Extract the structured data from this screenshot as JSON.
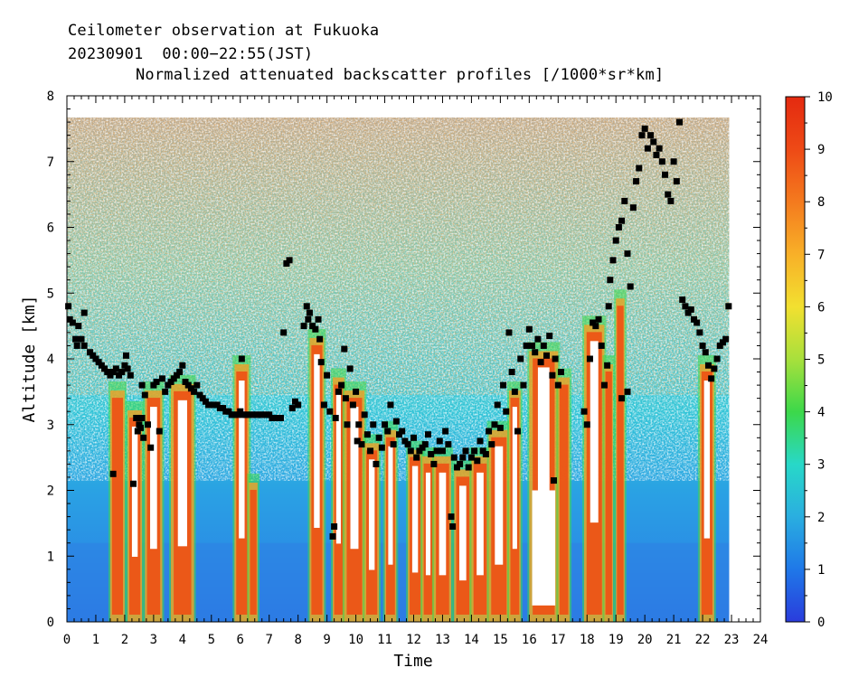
{
  "chart_data": {
    "type": "heatmap",
    "title_lines": [
      "Ceilometer observation at Fukuoka",
      "20230901  00:00−22:55(JST)",
      "Normalized attenuated backscatter profiles [/1000*sr*km]"
    ],
    "xlabel": "Time",
    "ylabel": "Altitude [km]",
    "xlim": [
      0,
      24
    ],
    "ylim": [
      0,
      8
    ],
    "x_ticks": [
      "0",
      "1",
      "2",
      "3",
      "4",
      "5",
      "6",
      "7",
      "8",
      "9",
      "10",
      "11",
      "12",
      "13",
      "14",
      "15",
      "16",
      "17",
      "18",
      "19",
      "20",
      "21",
      "22",
      "23",
      "24"
    ],
    "y_ticks": [
      "0",
      "1",
      "2",
      "3",
      "4",
      "5",
      "6",
      "7",
      "8"
    ],
    "colorbar": {
      "min": 0,
      "max": 10,
      "ticks": [
        "0",
        "1",
        "2",
        "3",
        "4",
        "5",
        "6",
        "7",
        "8",
        "9",
        "10"
      ],
      "colors": [
        "#2a3cdc",
        "#1f78e8",
        "#2aaee0",
        "#28d8c8",
        "#3cd84a",
        "#a8e03c",
        "#f2e030",
        "#f8b028",
        "#f47a1e",
        "#ee4a16",
        "#e42a10"
      ]
    },
    "data_extent": {
      "time_end_hours": 22.92,
      "top_altitude_km": 7.67
    },
    "cloud_base_points": [
      [
        0.05,
        4.8
      ],
      [
        0.1,
        4.6
      ],
      [
        0.2,
        4.55
      ],
      [
        0.3,
        4.3
      ],
      [
        0.35,
        4.2
      ],
      [
        0.4,
        4.5
      ],
      [
        0.5,
        4.3
      ],
      [
        0.6,
        4.7
      ],
      [
        0.6,
        4.2
      ],
      [
        0.8,
        4.1
      ],
      [
        0.9,
        4.05
      ],
      [
        1.0,
        4.0
      ],
      [
        1.1,
        3.95
      ],
      [
        1.2,
        3.9
      ],
      [
        1.3,
        3.85
      ],
      [
        1.4,
        3.8
      ],
      [
        1.5,
        3.75
      ],
      [
        1.6,
        3.8
      ],
      [
        1.7,
        3.85
      ],
      [
        1.8,
        3.75
      ],
      [
        1.9,
        3.8
      ],
      [
        2.0,
        3.9
      ],
      [
        2.05,
        4.05
      ],
      [
        2.1,
        3.85
      ],
      [
        2.2,
        3.75
      ],
      [
        1.6,
        2.25
      ],
      [
        2.3,
        2.1
      ],
      [
        2.4,
        3.1
      ],
      [
        2.45,
        2.9
      ],
      [
        2.5,
        3.0
      ],
      [
        2.55,
        2.95
      ],
      [
        2.6,
        3.6
      ],
      [
        2.6,
        3.1
      ],
      [
        2.65,
        2.8
      ],
      [
        2.7,
        3.45
      ],
      [
        2.8,
        3.0
      ],
      [
        2.9,
        2.65
      ],
      [
        3.0,
        3.6
      ],
      [
        3.1,
        3.65
      ],
      [
        3.2,
        2.9
      ],
      [
        3.3,
        3.7
      ],
      [
        3.4,
        3.5
      ],
      [
        3.5,
        3.6
      ],
      [
        3.6,
        3.65
      ],
      [
        3.7,
        3.7
      ],
      [
        3.8,
        3.75
      ],
      [
        3.9,
        3.8
      ],
      [
        4.0,
        3.9
      ],
      [
        4.1,
        3.65
      ],
      [
        4.2,
        3.6
      ],
      [
        4.3,
        3.55
      ],
      [
        4.4,
        3.5
      ],
      [
        4.5,
        3.6
      ],
      [
        4.6,
        3.45
      ],
      [
        4.7,
        3.4
      ],
      [
        4.8,
        3.35
      ],
      [
        4.9,
        3.3
      ],
      [
        5.0,
        3.3
      ],
      [
        5.1,
        3.3
      ],
      [
        5.2,
        3.3
      ],
      [
        5.3,
        3.25
      ],
      [
        5.4,
        3.25
      ],
      [
        5.5,
        3.2
      ],
      [
        5.6,
        3.2
      ],
      [
        5.7,
        3.15
      ],
      [
        5.8,
        3.15
      ],
      [
        5.9,
        3.15
      ],
      [
        6.0,
        3.2
      ],
      [
        6.05,
        4.0
      ],
      [
        6.1,
        3.15
      ],
      [
        6.2,
        3.15
      ],
      [
        6.3,
        3.15
      ],
      [
        6.4,
        3.15
      ],
      [
        6.5,
        3.15
      ],
      [
        6.6,
        3.15
      ],
      [
        6.7,
        3.15
      ],
      [
        6.8,
        3.15
      ],
      [
        6.9,
        3.15
      ],
      [
        7.0,
        3.15
      ],
      [
        7.1,
        3.1
      ],
      [
        7.2,
        3.1
      ],
      [
        7.3,
        3.1
      ],
      [
        7.4,
        3.1
      ],
      [
        7.5,
        4.4
      ],
      [
        7.6,
        5.45
      ],
      [
        7.7,
        5.5
      ],
      [
        7.8,
        3.25
      ],
      [
        7.9,
        3.35
      ],
      [
        8.0,
        3.3
      ],
      [
        8.2,
        4.5
      ],
      [
        8.3,
        4.8
      ],
      [
        8.35,
        4.6
      ],
      [
        8.4,
        4.7
      ],
      [
        8.5,
        4.5
      ],
      [
        8.6,
        4.45
      ],
      [
        8.7,
        4.6
      ],
      [
        8.75,
        4.3
      ],
      [
        8.8,
        3.95
      ],
      [
        8.9,
        3.3
      ],
      [
        9.0,
        3.75
      ],
      [
        9.1,
        3.2
      ],
      [
        9.2,
        1.3
      ],
      [
        9.25,
        1.45
      ],
      [
        9.3,
        3.1
      ],
      [
        9.4,
        3.5
      ],
      [
        9.5,
        3.6
      ],
      [
        9.6,
        4.15
      ],
      [
        9.65,
        3.4
      ],
      [
        9.7,
        3.0
      ],
      [
        9.8,
        3.85
      ],
      [
        9.9,
        3.3
      ],
      [
        10.0,
        3.5
      ],
      [
        10.05,
        2.75
      ],
      [
        10.1,
        3.0
      ],
      [
        10.2,
        2.7
      ],
      [
        10.3,
        3.15
      ],
      [
        10.4,
        2.85
      ],
      [
        10.5,
        2.6
      ],
      [
        10.6,
        3.0
      ],
      [
        10.7,
        2.4
      ],
      [
        10.8,
        2.8
      ],
      [
        10.9,
        2.65
      ],
      [
        11.0,
        3.0
      ],
      [
        11.1,
        2.9
      ],
      [
        11.2,
        3.3
      ],
      [
        11.3,
        2.7
      ],
      [
        11.4,
        3.05
      ],
      [
        11.5,
        2.85
      ],
      [
        11.6,
        2.9
      ],
      [
        11.7,
        2.75
      ],
      [
        11.8,
        2.7
      ],
      [
        11.9,
        2.6
      ],
      [
        12.0,
        2.8
      ],
      [
        12.1,
        2.5
      ],
      [
        12.2,
        2.6
      ],
      [
        12.3,
        2.65
      ],
      [
        12.4,
        2.7
      ],
      [
        12.5,
        2.85
      ],
      [
        12.6,
        2.55
      ],
      [
        12.7,
        2.4
      ],
      [
        12.8,
        2.6
      ],
      [
        12.9,
        2.75
      ],
      [
        13.0,
        2.6
      ],
      [
        13.1,
        2.9
      ],
      [
        13.2,
        2.7
      ],
      [
        13.3,
        1.6
      ],
      [
        13.35,
        1.45
      ],
      [
        13.4,
        2.5
      ],
      [
        13.5,
        2.35
      ],
      [
        13.6,
        2.4
      ],
      [
        13.7,
        2.5
      ],
      [
        13.8,
        2.6
      ],
      [
        13.9,
        2.35
      ],
      [
        14.0,
        2.5
      ],
      [
        14.1,
        2.6
      ],
      [
        14.2,
        2.45
      ],
      [
        14.3,
        2.75
      ],
      [
        14.4,
        2.6
      ],
      [
        14.5,
        2.55
      ],
      [
        14.6,
        2.9
      ],
      [
        14.7,
        2.7
      ],
      [
        14.8,
        3.0
      ],
      [
        14.9,
        3.3
      ],
      [
        15.0,
        2.95
      ],
      [
        15.1,
        3.6
      ],
      [
        15.2,
        3.2
      ],
      [
        15.3,
        4.4
      ],
      [
        15.4,
        3.8
      ],
      [
        15.5,
        3.5
      ],
      [
        15.6,
        2.9
      ],
      [
        15.7,
        4.0
      ],
      [
        15.8,
        3.6
      ],
      [
        15.9,
        4.2
      ],
      [
        16.0,
        4.45
      ],
      [
        16.1,
        4.2
      ],
      [
        16.2,
        4.1
      ],
      [
        16.3,
        4.3
      ],
      [
        16.4,
        3.95
      ],
      [
        16.5,
        4.2
      ],
      [
        16.6,
        4.05
      ],
      [
        16.7,
        4.35
      ],
      [
        16.8,
        3.75
      ],
      [
        16.85,
        2.15
      ],
      [
        16.9,
        4.0
      ],
      [
        17.0,
        3.6
      ],
      [
        17.1,
        3.8
      ],
      [
        17.9,
        3.2
      ],
      [
        18.0,
        3.0
      ],
      [
        18.1,
        4.0
      ],
      [
        18.2,
        4.55
      ],
      [
        18.3,
        4.5
      ],
      [
        18.4,
        4.6
      ],
      [
        18.5,
        4.2
      ],
      [
        18.6,
        3.6
      ],
      [
        18.7,
        3.9
      ],
      [
        18.75,
        4.8
      ],
      [
        18.8,
        5.2
      ],
      [
        18.9,
        5.5
      ],
      [
        19.0,
        5.8
      ],
      [
        19.1,
        6.0
      ],
      [
        19.2,
        6.1
      ],
      [
        19.3,
        6.4
      ],
      [
        19.4,
        5.6
      ],
      [
        19.5,
        5.1
      ],
      [
        19.6,
        6.3
      ],
      [
        19.7,
        6.7
      ],
      [
        19.8,
        6.9
      ],
      [
        19.9,
        7.4
      ],
      [
        20.0,
        7.5
      ],
      [
        20.1,
        7.2
      ],
      [
        20.2,
        7.4
      ],
      [
        20.3,
        7.3
      ],
      [
        20.4,
        7.1
      ],
      [
        20.5,
        7.2
      ],
      [
        20.6,
        7.0
      ],
      [
        20.7,
        6.8
      ],
      [
        20.8,
        6.5
      ],
      [
        20.9,
        6.4
      ],
      [
        21.0,
        7.0
      ],
      [
        21.1,
        6.7
      ],
      [
        21.2,
        7.6
      ],
      [
        21.3,
        4.9
      ],
      [
        21.4,
        4.8
      ],
      [
        21.5,
        4.7
      ],
      [
        21.6,
        4.75
      ],
      [
        21.7,
        4.6
      ],
      [
        21.8,
        4.55
      ],
      [
        21.9,
        4.4
      ],
      [
        22.0,
        4.2
      ],
      [
        22.1,
        4.1
      ],
      [
        22.2,
        3.9
      ],
      [
        22.3,
        3.7
      ],
      [
        22.4,
        3.85
      ],
      [
        22.5,
        4.0
      ],
      [
        22.6,
        4.2
      ],
      [
        22.7,
        4.25
      ],
      [
        22.8,
        4.3
      ],
      [
        22.9,
        4.8
      ],
      [
        19.2,
        3.4
      ],
      [
        19.4,
        3.5
      ]
    ]
  }
}
